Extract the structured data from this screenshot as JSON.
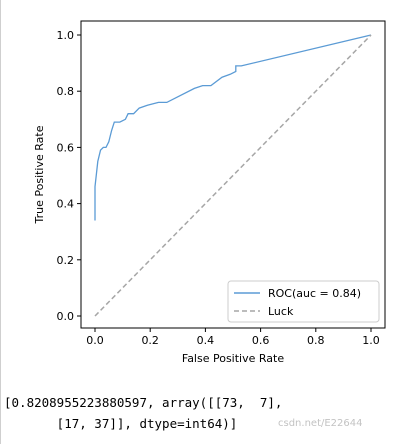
{
  "chart_data": {
    "type": "line",
    "xlabel": "False Positive Rate",
    "ylabel": "True Positive Rate",
    "xlim": [
      0.0,
      1.0
    ],
    "ylim": [
      0.0,
      1.0
    ],
    "xticks": [
      "0.0",
      "0.2",
      "0.4",
      "0.6",
      "0.8",
      "1.0"
    ],
    "yticks": [
      "0.0",
      "0.2",
      "0.4",
      "0.6",
      "0.8",
      "1.0"
    ],
    "grid": false,
    "legend_position": "lower-right",
    "series": [
      {
        "name": "ROC(auc = 0.84)",
        "color": "#5b9bd5",
        "style": "solid",
        "x": [
          0.0,
          0.0,
          0.0,
          0.01,
          0.02,
          0.03,
          0.04,
          0.05,
          0.06,
          0.07,
          0.09,
          0.11,
          0.12,
          0.14,
          0.16,
          0.19,
          0.23,
          0.26,
          0.3,
          0.36,
          0.39,
          0.42,
          0.46,
          0.49,
          0.51,
          0.51,
          0.53,
          1.0
        ],
        "y": [
          0.34,
          0.44,
          0.46,
          0.55,
          0.59,
          0.6,
          0.6,
          0.62,
          0.66,
          0.69,
          0.69,
          0.7,
          0.72,
          0.72,
          0.74,
          0.75,
          0.76,
          0.76,
          0.78,
          0.81,
          0.82,
          0.82,
          0.85,
          0.86,
          0.87,
          0.89,
          0.89,
          1.0
        ]
      },
      {
        "name": "Luck",
        "color": "#a6a6a6",
        "style": "dashed",
        "x": [
          0.0,
          1.0
        ],
        "y": [
          0.0,
          1.0
        ]
      }
    ]
  },
  "output": {
    "line1": "[0.8208955223880597, array([[73,  7],",
    "line2": "       [17, 37]], dtype=int64)]"
  },
  "watermark": "csdn.net/E22644"
}
